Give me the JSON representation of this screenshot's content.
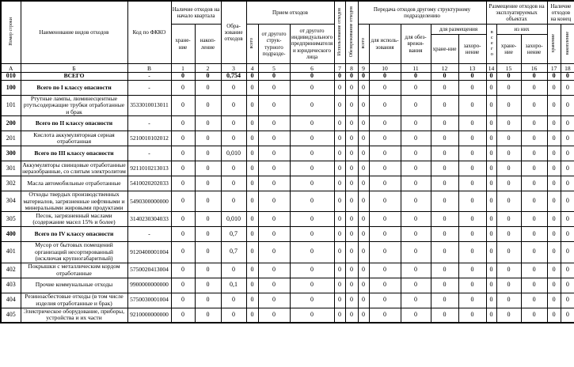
{
  "table": {
    "header": {
      "row_number": "Номер строки",
      "waste_name": "Наименование видов отходов",
      "fkko_code": "Код по ФККО",
      "begin_group": "Наличие отходов на начало квартала",
      "begin_storage": "хране-ние",
      "begin_accumulation": "накоп-ление",
      "formation": "Обра-зование отходов",
      "intake_group": "Прием отходов",
      "intake_total": "всего",
      "intake_from_struct": "от другого струк-турного подразде-",
      "intake_from_entity": "от другого индивидуального предпринимателя и юридического лица",
      "use": "Использование отходов",
      "neutralization": "Обезвреживание отходов",
      "transfer_group": "Передача отходов другому структурному подразделению",
      "transfer_total": "всего",
      "transfer_for_use": "для исполь-зования",
      "transfer_for_neutralization": "для обез-врежи-вания",
      "transfer_for_placement": "для размещения",
      "transfer_storage": "хране-ние",
      "transfer_burial": "захоро-нение",
      "placement_group": "Размещение отходов на эксплуатируемых объектах",
      "placement_total": "всего",
      "placement_of_them": "из них",
      "placement_storage": "хране-ние",
      "placement_burial": "захоро-нение",
      "end_group": "Наличие отходов на конец",
      "end_storage": "хранение",
      "end_accumulation": "накопление"
    },
    "letters": [
      "А",
      "Б",
      "В",
      "1",
      "2",
      "3",
      "4",
      "5",
      "6",
      "7",
      "8",
      "9",
      "10",
      "11",
      "12",
      "13",
      "14",
      "15",
      "16",
      "17",
      "18"
    ],
    "rows": [
      {
        "num": "010",
        "name": "ВСЕГО",
        "code": "-",
        "style": "total",
        "values": [
          "0",
          "0",
          "0,754",
          "0",
          "0",
          "0",
          "0",
          "0",
          "0",
          "0",
          "0",
          "0",
          "0",
          "0",
          "0",
          "0",
          "0",
          "0"
        ]
      },
      {
        "num": "100",
        "name": "Всего по I классу опасности",
        "code": "-",
        "style": "subtotal",
        "values": [
          "0",
          "0",
          "0",
          "0",
          "0",
          "0",
          "0",
          "0",
          "0",
          "0",
          "0",
          "0",
          "0",
          "0",
          "0",
          "0",
          "0",
          "0"
        ]
      },
      {
        "num": "101",
        "name": "Ртутные лампы, люминесцентные ртутьсодержащие трубки отработанные и брак",
        "code": "3533010013011",
        "style": "",
        "values": [
          "0",
          "0",
          "0",
          "0",
          "0",
          "0",
          "0",
          "0",
          "0",
          "0",
          "0",
          "0",
          "0",
          "0",
          "0",
          "0",
          "0",
          "0"
        ]
      },
      {
        "num": "200",
        "name": "Всего по II классу опасности",
        "code": "-",
        "style": "subtotal",
        "values": [
          "0",
          "0",
          "0",
          "0",
          "0",
          "0",
          "0",
          "0",
          "0",
          "0",
          "0",
          "0",
          "0",
          "0",
          "0",
          "0",
          "0",
          "0"
        ]
      },
      {
        "num": "201",
        "name": "Кислота аккумуляторная серная отработанная",
        "code": "5210010102012",
        "style": "",
        "values": [
          "0",
          "0",
          "0",
          "0",
          "0",
          "0",
          "0",
          "0",
          "0",
          "0",
          "0",
          "0",
          "0",
          "0",
          "0",
          "0",
          "0",
          "0"
        ]
      },
      {
        "num": "300",
        "name": "Всего по III классу опасности",
        "code": "-",
        "style": "subtotal",
        "values": [
          "0",
          "0",
          "0,010",
          "0",
          "0",
          "0",
          "0",
          "0",
          "0",
          "0",
          "0",
          "0",
          "0",
          "0",
          "0",
          "0",
          "0",
          "0"
        ]
      },
      {
        "num": "301",
        "name": "Аккумуляторы свинцовые отработанные неразобранные, со слитым электролитом",
        "code": "9211010213013",
        "style": "",
        "values": [
          "0",
          "0",
          "0",
          "0",
          "0",
          "0",
          "0",
          "0",
          "0",
          "0",
          "0",
          "0",
          "0",
          "0",
          "0",
          "0",
          "0",
          "0"
        ]
      },
      {
        "num": "302",
        "name": "Масла автомобильные отработанные",
        "code": "5410020202033",
        "style": "",
        "values": [
          "0",
          "0",
          "0",
          "0",
          "0",
          "0",
          "0",
          "0",
          "0",
          "0",
          "0",
          "0",
          "0",
          "0",
          "0",
          "0",
          "0",
          "0"
        ]
      },
      {
        "num": "304",
        "name": "Отходы твердых производственных материалов, загрязненные нефтяными и минеральными жировыми продуктами",
        "code": "5490300000000",
        "style": "",
        "values": [
          "0",
          "0",
          "0",
          "0",
          "0",
          "0",
          "0",
          "0",
          "0",
          "0",
          "0",
          "0",
          "0",
          "0",
          "0",
          "0",
          "0",
          "0"
        ]
      },
      {
        "num": "305",
        "name": "Песок, загрязненный маслами (содержание масел 15% и более)",
        "code": "3140230304033",
        "style": "",
        "values": [
          "0",
          "0",
          "0,010",
          "0",
          "0",
          "0",
          "0",
          "0",
          "0",
          "0",
          "0",
          "0",
          "0",
          "0",
          "0",
          "0",
          "0",
          "0"
        ]
      },
      {
        "num": "400",
        "name": "Всего по IV классу опасности",
        "code": "-",
        "style": "subtotal",
        "values": [
          "0",
          "0",
          "0,7",
          "0",
          "0",
          "0",
          "0",
          "0",
          "0",
          "0",
          "0",
          "0",
          "0",
          "0",
          "0",
          "0",
          "0",
          "0"
        ]
      },
      {
        "num": "401",
        "name": "Мусор от бытовых помещений организаций несортированный (исключая крупногабаритный)",
        "code": "9120400001004",
        "style": "",
        "values": [
          "0",
          "0",
          "0,7",
          "0",
          "0",
          "0",
          "0",
          "0",
          "0",
          "0",
          "0",
          "0",
          "0",
          "0",
          "0",
          "0",
          "0",
          "0"
        ]
      },
      {
        "num": "402",
        "name": "Покрышки с металлическим кордом отработанные",
        "code": "5750020413004",
        "style": "",
        "values": [
          "0",
          "0",
          "0",
          "0",
          "0",
          "0",
          "0",
          "0",
          "0",
          "0",
          "0",
          "0",
          "0",
          "0",
          "0",
          "0",
          "0",
          "0"
        ]
      },
      {
        "num": "403",
        "name": "Прочие коммунальные отходы",
        "code": "9900000000000",
        "style": "",
        "values": [
          "0",
          "0",
          "0,1",
          "0",
          "0",
          "0",
          "0",
          "0",
          "0",
          "0",
          "0",
          "0",
          "0",
          "0",
          "0",
          "0",
          "0",
          "0"
        ]
      },
      {
        "num": "404",
        "name": "Резиноасбестовые отходы (в том числе изделия отработанные и брак)",
        "code": "5750030001004",
        "style": "",
        "values": [
          "0",
          "0",
          "0",
          "0",
          "0",
          "0",
          "0",
          "0",
          "0",
          "0",
          "0",
          "0",
          "0",
          "0",
          "0",
          "0",
          "0",
          "0"
        ]
      },
      {
        "num": "405",
        "name": "Электрическое оборудование, приборы, устройства и их части",
        "code": "9210000000000",
        "style": "",
        "values": [
          "0",
          "0",
          "0",
          "0",
          "0",
          "0",
          "0",
          "0",
          "0",
          "0",
          "0",
          "0",
          "0",
          "0",
          "0",
          "0",
          "0",
          "0"
        ]
      }
    ]
  }
}
